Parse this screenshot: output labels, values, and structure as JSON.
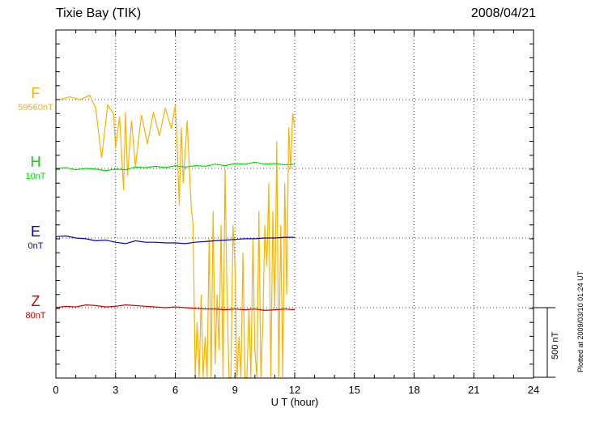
{
  "header": {
    "station": "Tixie Bay (TIK)",
    "date": "2008/04/21"
  },
  "side_note": "Plotted at 2009/03/10 01:24 UT",
  "scale_bar_label": "500 nT",
  "chart_data": {
    "type": "line",
    "title": "Tixie Bay (TIK)",
    "date": "2008/04/21",
    "xlabel": "U T (hour)",
    "xlim": [
      0,
      24
    ],
    "xticks": [
      "0",
      "3",
      "6",
      "9",
      "12",
      "15",
      "18",
      "21",
      "24"
    ],
    "grid": true,
    "scale_bar_nT": 500,
    "series": [
      {
        "name": "F",
        "baseline_label": "59560nT",
        "color": "#ffb000",
        "x": [
          0.2,
          0.7,
          1.2,
          1.7,
          2.0,
          2.3,
          2.6,
          2.9,
          3.0,
          3.2,
          3.4,
          3.5,
          3.6,
          3.8,
          4.0,
          4.3,
          4.6,
          4.9,
          5.2,
          5.5,
          5.8,
          6.0,
          6.1,
          6.2,
          6.3,
          6.4,
          6.6,
          6.8,
          6.9,
          7.0,
          7.1,
          7.2,
          7.3,
          7.4,
          7.5,
          7.6,
          7.7,
          7.8,
          7.9,
          8.0,
          8.1,
          8.2,
          8.3,
          8.4,
          8.5,
          8.6,
          8.7,
          8.8,
          8.9,
          9.0,
          9.1,
          9.2,
          9.3,
          9.4,
          9.5,
          9.6,
          9.7,
          9.8,
          9.9,
          10.0,
          10.1,
          10.2,
          10.3,
          10.4,
          10.5,
          10.6,
          10.7,
          10.8,
          10.9,
          11.0,
          11.1,
          11.2,
          11.3,
          11.4,
          11.5,
          11.6,
          11.7,
          11.8,
          11.9,
          12.0
        ],
        "y": [
          0,
          20,
          0,
          30,
          -60,
          -420,
          -40,
          -100,
          -350,
          -120,
          -650,
          -90,
          -550,
          -150,
          -480,
          -110,
          -320,
          -90,
          -260,
          -60,
          -210,
          -40,
          -350,
          -760,
          -200,
          -600,
          -150,
          -780,
          -900,
          -2200,
          -1600,
          -2450,
          -1400,
          -2550,
          -1700,
          -2200,
          -1000,
          -2350,
          -800,
          -1900,
          -1400,
          -1800,
          -900,
          -2000,
          -500,
          -1400,
          -2100,
          -2300,
          -900,
          -1200,
          -2600,
          -1700,
          -2500,
          -1100,
          -2000,
          -2700,
          -1500,
          -2800,
          -1000,
          -1800,
          -2650,
          -800,
          -2100,
          -1600,
          -900,
          -1200,
          -600,
          -2000,
          -800,
          -1500,
          -300,
          -2100,
          -900,
          -2500,
          -600,
          -1400,
          -200,
          -500,
          -100,
          -200
        ]
      },
      {
        "name": "H",
        "baseline_label": "10nT",
        "color": "#00e000",
        "x": [
          0,
          0.5,
          1,
          1.5,
          2,
          2.5,
          3,
          3.5,
          4,
          4.5,
          5,
          5.5,
          6,
          6.5,
          7,
          7.5,
          8,
          8.5,
          9,
          9.5,
          10,
          10.5,
          11,
          11.5,
          12
        ],
        "y": [
          0,
          5,
          -10,
          0,
          -5,
          -15,
          -5,
          -10,
          10,
          5,
          15,
          5,
          20,
          10,
          20,
          15,
          30,
          20,
          35,
          30,
          45,
          30,
          35,
          25,
          30
        ]
      },
      {
        "name": "E",
        "baseline_label": "0nT",
        "color": "#0000c0",
        "x": [
          0,
          0.5,
          1,
          1.5,
          2,
          2.5,
          3,
          3.5,
          4,
          4.5,
          5,
          5.5,
          6,
          6.5,
          7,
          7.5,
          8,
          8.5,
          9,
          9.5,
          10,
          10.5,
          11,
          11.5,
          12
        ],
        "y": [
          10,
          15,
          0,
          -5,
          -20,
          -15,
          -30,
          -40,
          -20,
          -30,
          -30,
          -35,
          -35,
          -40,
          -30,
          -25,
          -20,
          -15,
          -10,
          -5,
          -5,
          0,
          0,
          5,
          5
        ]
      },
      {
        "name": "Z",
        "baseline_label": "80nT",
        "color": "#d00000",
        "x": [
          0,
          0.5,
          1,
          1.5,
          2,
          2.5,
          3,
          3.5,
          4,
          4.5,
          5,
          5.5,
          6,
          6.5,
          7,
          7.5,
          8,
          8.5,
          9,
          9.5,
          10,
          10.5,
          11,
          11.5,
          12
        ],
        "y": [
          0,
          10,
          5,
          20,
          15,
          5,
          10,
          20,
          15,
          10,
          5,
          0,
          5,
          0,
          -5,
          -10,
          -10,
          -15,
          -10,
          -15,
          -10,
          -20,
          -15,
          -10,
          -15
        ]
      }
    ]
  }
}
